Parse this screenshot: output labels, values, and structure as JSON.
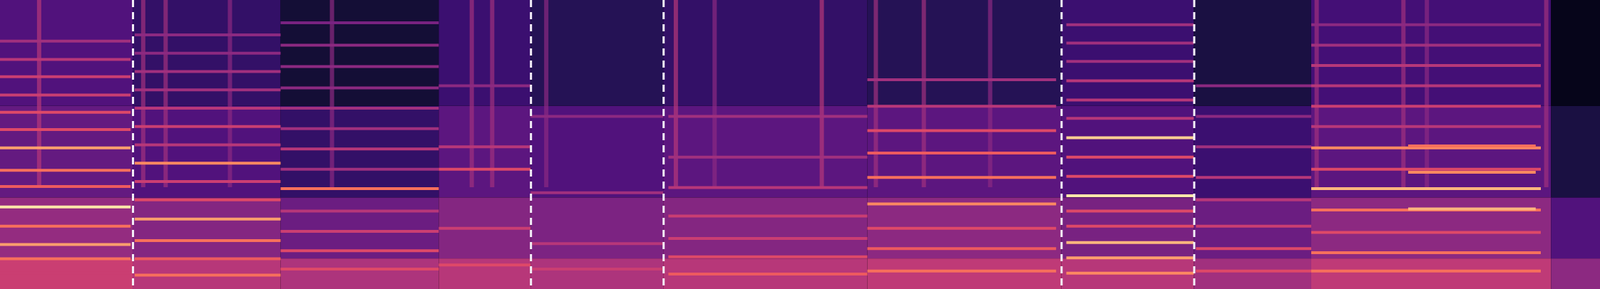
{
  "chart_data": {
    "type": "heatmap",
    "tick_labels": false,
    "xlim": [
      0,
      1568
    ],
    "ylim": [
      0,
      284
    ],
    "color_range": [
      0,
      1
    ],
    "boundaries": [
      130,
      520,
      650,
      1040,
      1170
    ],
    "background": {
      "bands": [
        0,
        30,
        90,
        180,
        284
      ],
      "blocks": [
        [
          0,
          130,
          0.55,
          0.42,
          0.3,
          0.25
        ],
        [
          130,
          275,
          0.5,
          0.38,
          0.25,
          0.18
        ],
        [
          275,
          430,
          0.48,
          0.32,
          0.18,
          0.1
        ],
        [
          430,
          520,
          0.5,
          0.38,
          0.28,
          0.2
        ],
        [
          520,
          650,
          0.48,
          0.36,
          0.25,
          0.15
        ],
        [
          650,
          850,
          0.5,
          0.38,
          0.28,
          0.18
        ],
        [
          850,
          1040,
          0.52,
          0.4,
          0.28,
          0.15
        ],
        [
          1040,
          1170,
          0.5,
          0.35,
          0.25,
          0.2
        ],
        [
          1170,
          1285,
          0.45,
          0.32,
          0.2,
          0.12
        ],
        [
          1285,
          1520,
          0.52,
          0.4,
          0.28,
          0.22
        ],
        [
          1520,
          1568,
          0.4,
          0.25,
          0.12,
          0.05
        ]
      ]
    },
    "onsets": {
      "f_range": [
        100,
        284
      ],
      "items": [
        [
          38,
          0.5
        ],
        [
          140,
          0.45
        ],
        [
          162,
          0.45
        ],
        [
          225,
          0.4
        ],
        [
          325,
          0.4
        ],
        [
          462,
          0.45
        ],
        [
          482,
          0.45
        ],
        [
          535,
          0.4
        ],
        [
          662,
          0.5
        ],
        [
          700,
          0.4
        ],
        [
          805,
          0.5
        ],
        [
          858,
          0.45
        ],
        [
          905,
          0.45
        ],
        [
          970,
          0.4
        ],
        [
          1290,
          0.45
        ],
        [
          1375,
          0.45
        ],
        [
          1398,
          0.4
        ],
        [
          1515,
          0.45
        ]
      ]
    },
    "harmonics": [
      [
        0,
        128,
        16,
        0.55
      ],
      [
        0,
        128,
        30,
        0.7
      ],
      [
        0,
        128,
        44,
        0.8
      ],
      [
        0,
        128,
        62,
        0.7
      ],
      [
        0,
        128,
        81,
        0.95
      ],
      [
        0,
        128,
        101,
        0.65
      ],
      [
        0,
        128,
        117,
        0.7
      ],
      [
        0,
        128,
        139,
        0.8
      ],
      [
        0,
        128,
        157,
        0.6
      ],
      [
        0,
        128,
        174,
        0.6
      ],
      [
        0,
        128,
        191,
        0.55
      ],
      [
        0,
        128,
        209,
        0.55
      ],
      [
        0,
        128,
        226,
        0.5
      ],
      [
        0,
        128,
        244,
        0.45
      ],
      [
        132,
        275,
        14,
        0.7
      ],
      [
        132,
        275,
        30,
        0.65
      ],
      [
        132,
        275,
        48,
        0.7
      ],
      [
        132,
        275,
        69,
        0.8
      ],
      [
        132,
        275,
        88,
        0.6
      ],
      [
        132,
        275,
        106,
        0.55
      ],
      [
        132,
        275,
        124,
        0.75
      ],
      [
        132,
        275,
        142,
        0.5
      ],
      [
        132,
        275,
        160,
        0.55
      ],
      [
        132,
        275,
        178,
        0.5
      ],
      [
        132,
        275,
        196,
        0.45
      ],
      [
        132,
        275,
        214,
        0.45
      ],
      [
        132,
        275,
        232,
        0.4
      ],
      [
        132,
        275,
        250,
        0.4
      ],
      [
        275,
        430,
        20,
        0.6
      ],
      [
        275,
        430,
        38,
        0.6
      ],
      [
        275,
        430,
        57,
        0.55
      ],
      [
        275,
        430,
        77,
        0.5
      ],
      [
        275,
        430,
        99,
        0.7
      ],
      [
        275,
        430,
        118,
        0.45
      ],
      [
        275,
        430,
        138,
        0.5
      ],
      [
        275,
        430,
        158,
        0.45
      ],
      [
        275,
        430,
        178,
        0.45
      ],
      [
        275,
        430,
        198,
        0.4
      ],
      [
        275,
        430,
        219,
        0.4
      ],
      [
        275,
        430,
        240,
        0.4
      ],
      [
        275,
        430,
        262,
        0.35
      ],
      [
        430,
        520,
        24,
        0.6
      ],
      [
        430,
        520,
        60,
        0.55
      ],
      [
        430,
        520,
        118,
        0.6
      ],
      [
        430,
        520,
        140,
        0.5
      ],
      [
        430,
        520,
        200,
        0.4
      ],
      [
        520,
        650,
        20,
        0.55
      ],
      [
        520,
        650,
        45,
        0.5
      ],
      [
        520,
        650,
        95,
        0.45
      ],
      [
        520,
        650,
        170,
        0.4
      ],
      [
        655,
        850,
        15,
        0.65
      ],
      [
        655,
        850,
        32,
        0.6
      ],
      [
        655,
        850,
        50,
        0.55
      ],
      [
        655,
        850,
        72,
        0.55
      ],
      [
        655,
        850,
        100,
        0.5
      ],
      [
        655,
        850,
        130,
        0.45
      ],
      [
        655,
        850,
        170,
        0.45
      ],
      [
        850,
        1035,
        18,
        0.7
      ],
      [
        850,
        1035,
        40,
        0.65
      ],
      [
        850,
        1035,
        60,
        0.6
      ],
      [
        850,
        1035,
        84,
        0.75
      ],
      [
        850,
        1035,
        110,
        0.7
      ],
      [
        850,
        1035,
        134,
        0.65
      ],
      [
        850,
        1035,
        156,
        0.6
      ],
      [
        850,
        1035,
        180,
        0.5
      ],
      [
        850,
        1035,
        206,
        0.45
      ],
      [
        1045,
        1170,
        16,
        0.75
      ],
      [
        1045,
        1170,
        31,
        0.8
      ],
      [
        1045,
        1170,
        46,
        0.85
      ],
      [
        1045,
        1170,
        62,
        0.6
      ],
      [
        1045,
        1170,
        77,
        0.6
      ],
      [
        1045,
        1170,
        92,
        0.95
      ],
      [
        1045,
        1170,
        111,
        0.6
      ],
      [
        1045,
        1170,
        130,
        0.6
      ],
      [
        1045,
        1170,
        149,
        0.9
      ],
      [
        1045,
        1170,
        168,
        0.5
      ],
      [
        1045,
        1170,
        186,
        0.5
      ],
      [
        1045,
        1170,
        205,
        0.5
      ],
      [
        1045,
        1170,
        224,
        0.45
      ],
      [
        1045,
        1170,
        242,
        0.45
      ],
      [
        1045,
        1170,
        260,
        0.45
      ],
      [
        1172,
        1285,
        18,
        0.6
      ],
      [
        1172,
        1285,
        40,
        0.6
      ],
      [
        1172,
        1285,
        62,
        0.55
      ],
      [
        1172,
        1285,
        88,
        0.5
      ],
      [
        1172,
        1285,
        110,
        0.5
      ],
      [
        1172,
        1285,
        140,
        0.45
      ],
      [
        1172,
        1285,
        170,
        0.4
      ],
      [
        1172,
        1285,
        200,
        0.4
      ],
      [
        1285,
        1510,
        18,
        0.7
      ],
      [
        1285,
        1510,
        36,
        0.7
      ],
      [
        1285,
        1510,
        56,
        0.6
      ],
      [
        1285,
        1510,
        78,
        0.7
      ],
      [
        1285,
        1510,
        99,
        0.85
      ],
      [
        1285,
        1510,
        118,
        0.6
      ],
      [
        1285,
        1510,
        139,
        0.75
      ],
      [
        1285,
        1510,
        160,
        0.5
      ],
      [
        1285,
        1510,
        180,
        0.55
      ],
      [
        1285,
        1510,
        200,
        0.5
      ],
      [
        1285,
        1510,
        220,
        0.5
      ],
      [
        1285,
        1510,
        240,
        0.45
      ],
      [
        1285,
        1510,
        260,
        0.4
      ],
      [
        1380,
        1505,
        79,
        0.85
      ],
      [
        1380,
        1505,
        115,
        0.75
      ],
      [
        1380,
        1505,
        141,
        0.7
      ]
    ]
  }
}
